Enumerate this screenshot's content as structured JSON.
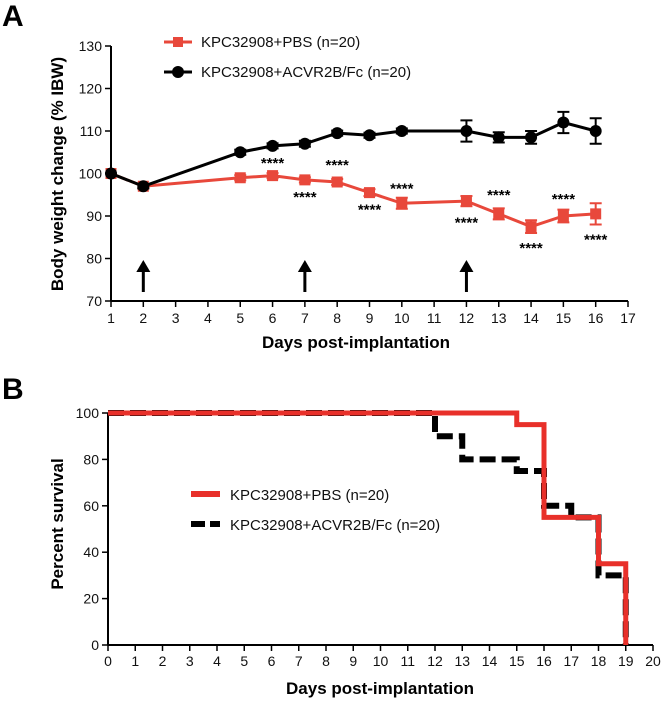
{
  "chart_data": [
    {
      "type": "line",
      "panel_label": "A",
      "title": "",
      "xlabel": "Days post-implantation",
      "ylabel": "Body weight change (% IBW)",
      "xlim": [
        1,
        17
      ],
      "ylim": [
        70,
        130
      ],
      "xticks": [
        "1",
        "2",
        "3",
        "4",
        "5",
        "6",
        "7",
        "8",
        "9",
        "10",
        "11",
        "12",
        "13",
        "14",
        "15",
        "16",
        "17"
      ],
      "yticks": [
        "70",
        "80",
        "90",
        "100",
        "110",
        "120",
        "130"
      ],
      "x": [
        1,
        2,
        5,
        6,
        7,
        8,
        9,
        10,
        12,
        13,
        14,
        15,
        16
      ],
      "series": [
        {
          "name": "KPC32908+PBS (n=20)",
          "color": "#e8483b",
          "marker": "square",
          "values": [
            100,
            97,
            99,
            99.5,
            98.5,
            98,
            95.5,
            93,
            93.5,
            90.5,
            87.5,
            90,
            90.5
          ],
          "errors": [
            0,
            0.5,
            0.6,
            0.6,
            0.6,
            0.7,
            0.8,
            1.3,
            1.2,
            1.3,
            1.5,
            1.5,
            2.5
          ]
        },
        {
          "name": "KPC32908+ACVR2B/Fc (n=20)",
          "color": "#000000",
          "marker": "circle",
          "values": [
            100,
            97,
            105,
            106.5,
            107,
            109.5,
            109,
            110,
            110,
            108.5,
            108.5,
            112,
            110
          ],
          "errors": [
            0,
            0.5,
            0.6,
            0.6,
            0.7,
            0.6,
            0.6,
            0.6,
            2.5,
            1.2,
            1.5,
            2.5,
            3
          ]
        }
      ],
      "annotations": [
        {
          "text": "****",
          "x": 6,
          "y": 102.5
        },
        {
          "text": "****",
          "x": 7,
          "y": 94.5
        },
        {
          "text": "****",
          "x": 8,
          "y": 102
        },
        {
          "text": "****",
          "x": 9,
          "y": 91.5
        },
        {
          "text": "****",
          "x": 10,
          "y": 96.5
        },
        {
          "text": "****",
          "x": 12,
          "y": 88.5
        },
        {
          "text": "****",
          "x": 13,
          "y": 95
        },
        {
          "text": "****",
          "x": 14,
          "y": 82.5
        },
        {
          "text": "****",
          "x": 15,
          "y": 94
        },
        {
          "text": "****",
          "x": 16,
          "y": 84.5
        }
      ],
      "arrows_at_x": [
        2,
        7,
        12
      ]
    },
    {
      "type": "line",
      "subtype": "step",
      "panel_label": "B",
      "title": "",
      "xlabel": "Days post-implantation",
      "ylabel": "Percent survival",
      "xlim": [
        0,
        20
      ],
      "ylim": [
        0,
        100
      ],
      "xticks": [
        "0",
        "1",
        "2",
        "3",
        "4",
        "5",
        "6",
        "7",
        "8",
        "9",
        "10",
        "11",
        "12",
        "13",
        "14",
        "15",
        "16",
        "17",
        "18",
        "19",
        "20"
      ],
      "yticks": [
        "0",
        "20",
        "40",
        "60",
        "80",
        "100"
      ],
      "series": [
        {
          "name": "KPC32908+PBS (n=20)",
          "color": "#e8302a",
          "style": "solid",
          "x": [
            0,
            15,
            16,
            18,
            19
          ],
          "values": [
            100,
            95,
            55,
            35,
            0
          ]
        },
        {
          "name": "KPC32908+ACVR2B/Fc (n=20)",
          "color": "#000000",
          "style": "dashed",
          "x": [
            0,
            12,
            13,
            15,
            16,
            17,
            18,
            19
          ],
          "values": [
            100,
            90,
            80,
            75,
            60,
            55,
            30,
            0
          ]
        }
      ]
    }
  ]
}
